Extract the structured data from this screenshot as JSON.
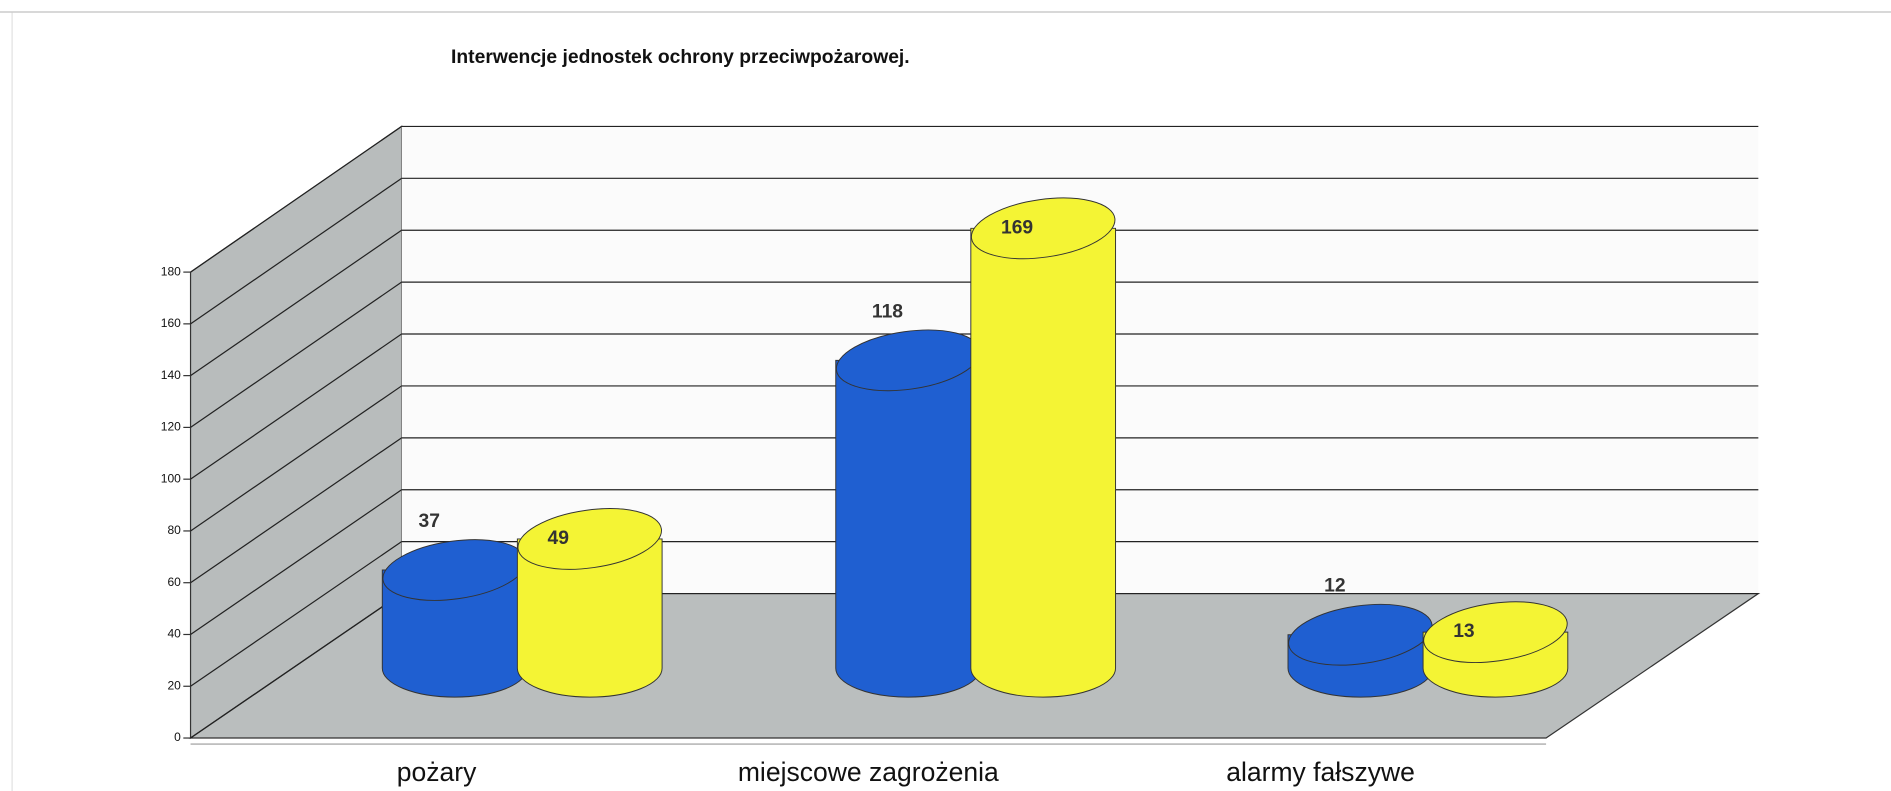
{
  "chart_data": {
    "type": "bar",
    "title": "Interwencje jednostek ochrony przeciwpożarowej.",
    "categories": [
      "pożary",
      "miejscowe zagrożenia",
      "alarmy fałszywe"
    ],
    "series": [
      {
        "color": "#1f5fd1",
        "values": [
          37,
          118,
          12
        ]
      },
      {
        "color": "#f4f434",
        "values": [
          49,
          169,
          13
        ]
      }
    ],
    "ylim": [
      0,
      180
    ],
    "yticks": [
      0,
      20,
      40,
      60,
      80,
      100,
      120,
      140,
      160,
      180
    ],
    "grid": true
  }
}
